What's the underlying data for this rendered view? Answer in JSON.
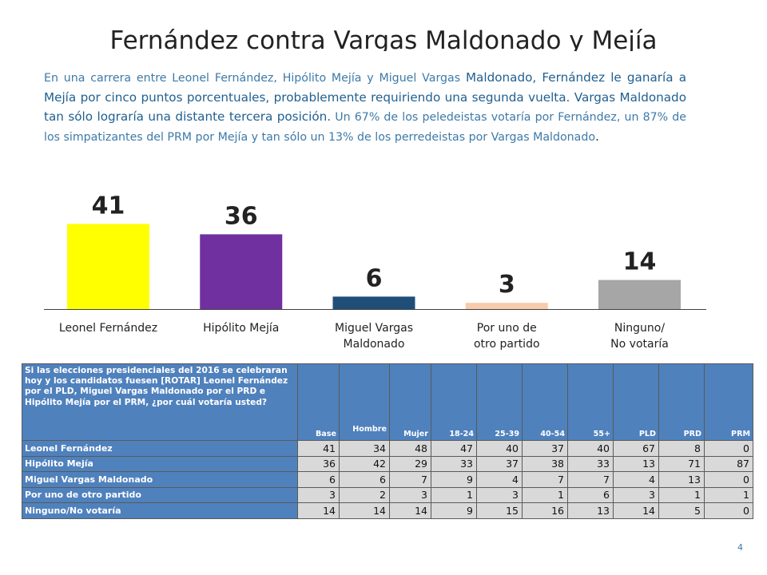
{
  "title": "Fernández contra Vargas Maldonado y Mejía",
  "intro": {
    "part1": "En una carrera entre Leonel Fernández, Hipólito Mejía y Miguel Vargas ",
    "part2": "Maldonado, Fernández le ganaría a Mejía por cinco puntos porcentuales, probablemente requiriendo una segunda vuelta. Vargas Maldonado tan sólo lograría una distante tercera posición.",
    "part3": " Un 67% de los peledeistas votaría por Fernández, un 87% de los simpatizantes del PRM por Mejía y tan sólo un 13% de los perredeistas por Vargas Maldonado",
    "part4": "."
  },
  "chart_data": {
    "type": "bar",
    "categories": [
      [
        "Leonel Fernández"
      ],
      [
        "Hipólito Mejía"
      ],
      [
        "Miguel Vargas",
        "Maldonado"
      ],
      [
        "Por uno de",
        "otro partido"
      ],
      [
        "Ninguno/",
        "No votaría"
      ]
    ],
    "values": [
      41,
      36,
      6,
      3,
      14
    ],
    "colors": [
      "#ffff00",
      "#7030a0",
      "#1f4e79",
      "#f8cbad",
      "#a6a6a6"
    ],
    "axis_color": "#404040",
    "label_color": "#222222"
  },
  "table": {
    "question": "Si las elecciones presidenciales del 2016 se celebraran hoy y los candidatos fuesen [ROTAR] Leonel Fernández por el PLD, Miguel Vargas Maldonado por el PRD e Hipólito Mejía por el PRM, ¿por cuál votaría usted?",
    "columns": [
      "Base",
      "Hombre",
      "Mujer",
      "18-24",
      "25-39",
      "40-54",
      "55+",
      "PLD",
      "PRD",
      "PRM"
    ],
    "rows": [
      {
        "label": "Leonel Fernández",
        "values": [
          "41",
          "34",
          "48",
          "47",
          "40",
          "37",
          "40",
          "67",
          "8",
          "0"
        ]
      },
      {
        "label": "Hipólito Mejía",
        "values": [
          "36",
          "42",
          "29",
          "33",
          "37",
          "38",
          "33",
          "13",
          "71",
          "87"
        ]
      },
      {
        "label": "Miguel Vargas Maldonado",
        "values": [
          "6",
          "6",
          "7",
          "9",
          "4",
          "7",
          "7",
          "4",
          "13",
          "0"
        ]
      },
      {
        "label": "Por uno de otro partido",
        "values": [
          "3",
          "2",
          "3",
          "1",
          "3",
          "1",
          "6",
          "3",
          "1",
          "1"
        ]
      },
      {
        "label": "Ninguno/No votaría",
        "values": [
          "14",
          "14",
          "14",
          "9",
          "15",
          "16",
          "13",
          "14",
          "5",
          "0"
        ]
      }
    ]
  },
  "page_number": "4"
}
